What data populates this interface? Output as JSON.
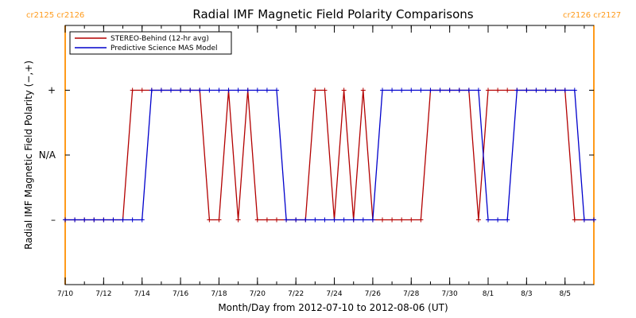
{
  "chart_data": {
    "type": "line",
    "title": "Radial IMF Magnetic Field Polarity Comparisons",
    "xlabel": "Month/Day from 2012-07-10 to 2012-08-06 (UT)",
    "ylabel": "Radial IMF Magnetic Field Polarity (−,+)",
    "y_tick_labels": [
      "–",
      "N/A",
      "+"
    ],
    "y_tick_values": [
      -1,
      0,
      1
    ],
    "ylim": [
      -2,
      2
    ],
    "xlim": [
      "2012-07-10",
      "2012-08-06T12:00"
    ],
    "x_tick_labels": [
      "7/10",
      "7/12",
      "7/14",
      "7/16",
      "7/18",
      "7/20",
      "7/22",
      "7/24",
      "7/26",
      "7/28",
      "7/30",
      "8/1",
      "8/3",
      "8/5"
    ],
    "x_tick_dates": [
      "2012-07-10",
      "2012-07-12",
      "2012-07-14",
      "2012-07-16",
      "2012-07-18",
      "2012-07-20",
      "2012-07-22",
      "2012-07-24",
      "2012-07-26",
      "2012-07-28",
      "2012-07-30",
      "2012-08-01",
      "2012-08-03",
      "2012-08-05"
    ],
    "carrington_labels": [
      {
        "text": "cr2125 cr2126",
        "date": "2012-07-10"
      },
      {
        "text": "cr2126 cr2127",
        "date": "2012-08-06T12:00"
      }
    ],
    "carrington_color": "#ff9a1a",
    "legend_position": "top-left",
    "series": [
      {
        "name": "STEREO-Behind (12-hr avg)",
        "color": "#b30000",
        "markers": "plus",
        "points": [
          [
            "2012-07-10T00:00",
            -1
          ],
          [
            "2012-07-10T12:00",
            -1
          ],
          [
            "2012-07-11T00:00",
            -1
          ],
          [
            "2012-07-11T12:00",
            -1
          ],
          [
            "2012-07-12T00:00",
            -1
          ],
          [
            "2012-07-12T12:00",
            -1
          ],
          [
            "2012-07-13T00:00",
            -1
          ],
          [
            "2012-07-13T12:00",
            1
          ],
          [
            "2012-07-14T00:00",
            1
          ],
          [
            "2012-07-14T12:00",
            1
          ],
          [
            "2012-07-15T00:00",
            1
          ],
          [
            "2012-07-15T12:00",
            1
          ],
          [
            "2012-07-16T00:00",
            1
          ],
          [
            "2012-07-16T12:00",
            1
          ],
          [
            "2012-07-17T00:00",
            1
          ],
          [
            "2012-07-17T12:00",
            -1
          ],
          [
            "2012-07-18T00:00",
            -1
          ],
          [
            "2012-07-18T12:00",
            1
          ],
          [
            "2012-07-19T00:00",
            -1
          ],
          [
            "2012-07-19T12:00",
            1
          ],
          [
            "2012-07-20T00:00",
            -1
          ],
          [
            "2012-07-20T12:00",
            -1
          ],
          [
            "2012-07-21T00:00",
            -1
          ],
          [
            "2012-07-21T12:00",
            -1
          ],
          [
            "2012-07-22T00:00",
            -1
          ],
          [
            "2012-07-22T12:00",
            -1
          ],
          [
            "2012-07-23T00:00",
            1
          ],
          [
            "2012-07-23T12:00",
            1
          ],
          [
            "2012-07-24T00:00",
            -1
          ],
          [
            "2012-07-24T12:00",
            1
          ],
          [
            "2012-07-25T00:00",
            -1
          ],
          [
            "2012-07-25T12:00",
            1
          ],
          [
            "2012-07-26T00:00",
            -1
          ],
          [
            "2012-07-26T12:00",
            -1
          ],
          [
            "2012-07-27T00:00",
            -1
          ],
          [
            "2012-07-27T12:00",
            -1
          ],
          [
            "2012-07-28T00:00",
            -1
          ],
          [
            "2012-07-28T12:00",
            -1
          ],
          [
            "2012-07-29T00:00",
            1
          ],
          [
            "2012-07-29T12:00",
            1
          ],
          [
            "2012-07-30T00:00",
            1
          ],
          [
            "2012-07-30T12:00",
            1
          ],
          [
            "2012-07-31T00:00",
            1
          ],
          [
            "2012-07-31T12:00",
            -1
          ],
          [
            "2012-08-01T00:00",
            1
          ],
          [
            "2012-08-01T12:00",
            1
          ],
          [
            "2012-08-02T00:00",
            1
          ],
          [
            "2012-08-02T12:00",
            1
          ],
          [
            "2012-08-03T00:00",
            1
          ],
          [
            "2012-08-03T12:00",
            1
          ],
          [
            "2012-08-04T00:00",
            1
          ],
          [
            "2012-08-04T12:00",
            1
          ],
          [
            "2012-08-05T00:00",
            1
          ],
          [
            "2012-08-05T12:00",
            -1
          ],
          [
            "2012-08-06T00:00",
            -1
          ],
          [
            "2012-08-06T12:00",
            -1
          ]
        ]
      },
      {
        "name": "Predictive Science MAS Model",
        "color": "#0000cc",
        "markers": "plus",
        "points": [
          [
            "2012-07-10T00:00",
            -1
          ],
          [
            "2012-07-10T12:00",
            -1
          ],
          [
            "2012-07-11T00:00",
            -1
          ],
          [
            "2012-07-11T12:00",
            -1
          ],
          [
            "2012-07-12T00:00",
            -1
          ],
          [
            "2012-07-12T12:00",
            -1
          ],
          [
            "2012-07-13T00:00",
            -1
          ],
          [
            "2012-07-13T12:00",
            -1
          ],
          [
            "2012-07-14T00:00",
            -1
          ],
          [
            "2012-07-14T12:00",
            1
          ],
          [
            "2012-07-15T00:00",
            1
          ],
          [
            "2012-07-15T12:00",
            1
          ],
          [
            "2012-07-16T00:00",
            1
          ],
          [
            "2012-07-16T12:00",
            1
          ],
          [
            "2012-07-17T00:00",
            1
          ],
          [
            "2012-07-17T12:00",
            1
          ],
          [
            "2012-07-18T00:00",
            1
          ],
          [
            "2012-07-18T12:00",
            1
          ],
          [
            "2012-07-19T00:00",
            1
          ],
          [
            "2012-07-19T12:00",
            1
          ],
          [
            "2012-07-20T00:00",
            1
          ],
          [
            "2012-07-20T12:00",
            1
          ],
          [
            "2012-07-21T00:00",
            1
          ],
          [
            "2012-07-21T12:00",
            -1
          ],
          [
            "2012-07-22T00:00",
            -1
          ],
          [
            "2012-07-22T12:00",
            -1
          ],
          [
            "2012-07-23T00:00",
            -1
          ],
          [
            "2012-07-23T12:00",
            -1
          ],
          [
            "2012-07-24T00:00",
            -1
          ],
          [
            "2012-07-24T12:00",
            -1
          ],
          [
            "2012-07-25T00:00",
            -1
          ],
          [
            "2012-07-25T12:00",
            -1
          ],
          [
            "2012-07-26T00:00",
            -1
          ],
          [
            "2012-07-26T12:00",
            1
          ],
          [
            "2012-07-27T00:00",
            1
          ],
          [
            "2012-07-27T12:00",
            1
          ],
          [
            "2012-07-28T00:00",
            1
          ],
          [
            "2012-07-28T12:00",
            1
          ],
          [
            "2012-07-29T00:00",
            1
          ],
          [
            "2012-07-29T12:00",
            1
          ],
          [
            "2012-07-30T00:00",
            1
          ],
          [
            "2012-07-30T12:00",
            1
          ],
          [
            "2012-07-31T00:00",
            1
          ],
          [
            "2012-07-31T12:00",
            1
          ],
          [
            "2012-08-01T00:00",
            -1
          ],
          [
            "2012-08-01T12:00",
            -1
          ],
          [
            "2012-08-02T00:00",
            -1
          ],
          [
            "2012-08-02T12:00",
            1
          ],
          [
            "2012-08-03T00:00",
            1
          ],
          [
            "2012-08-03T12:00",
            1
          ],
          [
            "2012-08-04T00:00",
            1
          ],
          [
            "2012-08-04T12:00",
            1
          ],
          [
            "2012-08-05T00:00",
            1
          ],
          [
            "2012-08-05T12:00",
            1
          ],
          [
            "2012-08-06T00:00",
            -1
          ],
          [
            "2012-08-06T12:00",
            -1
          ]
        ]
      }
    ]
  }
}
